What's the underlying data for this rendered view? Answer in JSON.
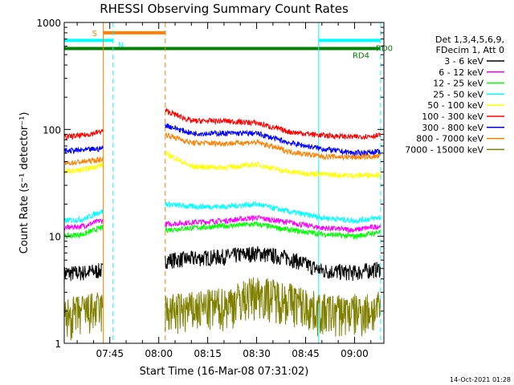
{
  "chart_data": {
    "type": "line",
    "title": "RHESSI Observing Summary Count Rates",
    "xlabel": "Start Time (16-Mar-08 07:31:02)",
    "ylabel": "Count Rate (s⁻¹ detector⁻¹)",
    "y_scale": "log",
    "ylim": [
      1,
      1000
    ],
    "xlim": [
      "07:31:02",
      "09:09:00"
    ],
    "x_ticks": [
      "07:45",
      "08:00",
      "08:15",
      "08:30",
      "08:45",
      "09:00"
    ],
    "y_ticks": [
      "1",
      "10",
      "100",
      "1000"
    ],
    "legend_header": [
      "Det 1,3,4,5,6,9,",
      "FDecim 1, Att 0"
    ],
    "legend_placement": "right",
    "gaps": [
      [
        "07:43",
        "08:02"
      ]
    ],
    "series": [
      {
        "name": "3 - 6 keV",
        "color": "#000000",
        "x": [
          "07:31",
          "07:37",
          "07:42",
          "08:02",
          "08:10",
          "08:20",
          "08:30",
          "08:40",
          "08:50",
          "09:00",
          "09:08"
        ],
        "values": [
          4.5,
          4.6,
          4.8,
          6,
          6.2,
          6.5,
          7,
          6.3,
          4.8,
          4.6,
          5
        ]
      },
      {
        "name": "6 - 12 keV",
        "color": "#ff00ff",
        "x": [
          "07:31",
          "07:37",
          "07:42",
          "08:02",
          "08:10",
          "08:20",
          "08:30",
          "08:40",
          "08:50",
          "09:00",
          "09:08"
        ],
        "values": [
          12,
          12.5,
          14,
          13,
          13.5,
          14,
          15,
          13.5,
          12,
          11.5,
          12.5
        ]
      },
      {
        "name": "12 - 25 keV",
        "color": "#00ff00",
        "x": [
          "07:31",
          "07:37",
          "07:42",
          "08:02",
          "08:10",
          "08:20",
          "08:30",
          "08:40",
          "08:50",
          "09:00",
          "09:08"
        ],
        "values": [
          10,
          10.5,
          12,
          11.5,
          12,
          12.5,
          13,
          11.5,
          10.5,
          10,
          11
        ]
      },
      {
        "name": "25 - 50 keV",
        "color": "#00ffff",
        "x": [
          "07:31",
          "07:37",
          "07:42",
          "08:02",
          "08:10",
          "08:20",
          "08:30",
          "08:40",
          "08:50",
          "09:00",
          "09:08"
        ],
        "values": [
          14,
          14.5,
          17,
          20,
          19,
          19,
          20,
          17,
          15,
          14,
          15
        ]
      },
      {
        "name": "50 - 100 keV",
        "color": "#ffff00",
        "x": [
          "07:31",
          "07:37",
          "07:42",
          "08:02",
          "08:10",
          "08:20",
          "08:30",
          "08:40",
          "08:50",
          "09:00",
          "09:08"
        ],
        "values": [
          40,
          42,
          46,
          60,
          45,
          44,
          47,
          40,
          38,
          37,
          38
        ]
      },
      {
        "name": "100 - 300 keV",
        "color": "#ff0000",
        "x": [
          "07:31",
          "07:37",
          "07:42",
          "08:02",
          "08:10",
          "08:20",
          "08:30",
          "08:40",
          "08:50",
          "09:00",
          "09:08"
        ],
        "values": [
          85,
          88,
          95,
          150,
          120,
          120,
          115,
          95,
          88,
          85,
          88
        ]
      },
      {
        "name": "300 - 800 keV",
        "color": "#0000ff",
        "x": [
          "07:31",
          "07:37",
          "07:42",
          "08:02",
          "08:10",
          "08:20",
          "08:30",
          "08:40",
          "08:50",
          "09:00",
          "09:08"
        ],
        "values": [
          63,
          64,
          66,
          110,
          92,
          92,
          92,
          75,
          66,
          60,
          62
        ]
      },
      {
        "name": "800 - 7000 keV",
        "color": "#ff8000",
        "x": [
          "07:31",
          "07:37",
          "07:42",
          "08:02",
          "08:10",
          "08:20",
          "08:30",
          "08:40",
          "08:50",
          "09:00",
          "09:08"
        ],
        "values": [
          48,
          50,
          52,
          90,
          75,
          74,
          76,
          62,
          56,
          55,
          56
        ]
      },
      {
        "name": "7000 - 15000 keV",
        "color": "#808000",
        "x": [
          "07:31",
          "07:37",
          "07:42",
          "08:02",
          "08:10",
          "08:20",
          "08:30",
          "08:40",
          "08:50",
          "09:00",
          "09:08"
        ],
        "values": [
          1.8,
          2.0,
          2.1,
          2.0,
          2.1,
          2.3,
          3.0,
          2.6,
          2.0,
          2.0,
          2.1
        ]
      }
    ],
    "flags": [
      {
        "label": "S",
        "color": "#ff8000",
        "y": 800,
        "start": "07:43",
        "end": "08:02"
      },
      {
        "label": "N",
        "color": "#00ffff",
        "y": 680,
        "start": "07:31",
        "end": "07:46",
        "start2": "08:49",
        "end2": "09:08"
      },
      {
        "label": "RD4",
        "color": "#008000",
        "y": 570,
        "start": "07:31",
        "end": "09:08"
      }
    ],
    "flag_right_label": "RD0",
    "vlines": [
      {
        "time": "07:43",
        "color": "#ff8000",
        "dash": false
      },
      {
        "time": "07:46",
        "color": "#00ffff",
        "dash": true
      },
      {
        "time": "08:02",
        "color": "#ff8000",
        "dash": true
      },
      {
        "time": "08:49",
        "color": "#00ffff",
        "dash": false
      },
      {
        "time": "09:08",
        "color": "#00ffff",
        "dash": true
      }
    ],
    "timestamp": "14-Oct-2021 01:28"
  }
}
